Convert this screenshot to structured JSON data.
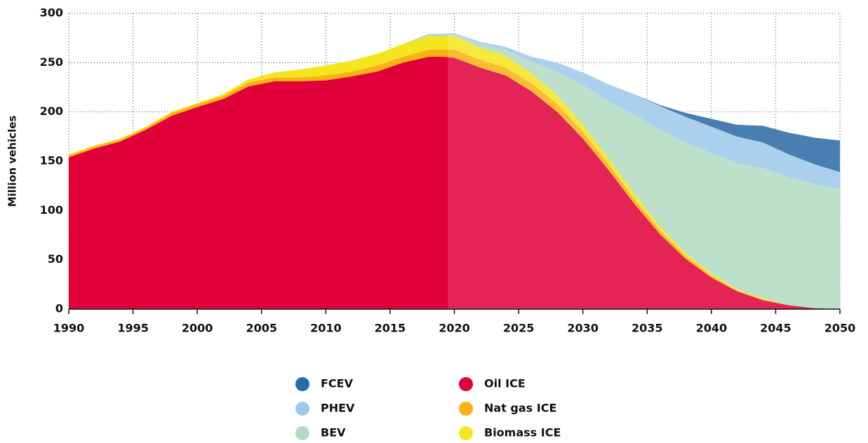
{
  "chart_data": {
    "type": "stacked_area",
    "ylabel": "Million vehicles",
    "x": [
      1990,
      1992,
      1994,
      1996,
      1998,
      2000,
      2002,
      2004,
      2006,
      2008,
      2010,
      2012,
      2014,
      2016,
      2018,
      2019,
      2020,
      2022,
      2024,
      2026,
      2028,
      2030,
      2032,
      2034,
      2036,
      2038,
      2040,
      2042,
      2044,
      2046,
      2048,
      2050
    ],
    "series": [
      {
        "name": "Oil ICE",
        "color": "#e0003a",
        "values": [
          154,
          163,
          170,
          182,
          196,
          205,
          213,
          226,
          231,
          231,
          232,
          236,
          241,
          250,
          256,
          256,
          255,
          245,
          237,
          221,
          200,
          173,
          141,
          107,
          76,
          51,
          32,
          18,
          9,
          4,
          1,
          0
        ]
      },
      {
        "name": "Nat gas ICE",
        "color": "#f9b214",
        "values": [
          2,
          2,
          2,
          2,
          3,
          3,
          3,
          4,
          4,
          4,
          5,
          5,
          6,
          6,
          7,
          7,
          8,
          8,
          8,
          8,
          8,
          7,
          6,
          5,
          4,
          3,
          2,
          1,
          1,
          0,
          0,
          0
        ]
      },
      {
        "name": "Biomass ICE",
        "color": "#f5e51e",
        "values": [
          1,
          1,
          1,
          1,
          1,
          1,
          2,
          3,
          5,
          8,
          10,
          11,
          12,
          13,
          14,
          14,
          14,
          12,
          12,
          10,
          9,
          7,
          6,
          5,
          4,
          3,
          2,
          1,
          1,
          0,
          0,
          0
        ]
      },
      {
        "name": "BEV",
        "color": "#b2dbc2",
        "values": [
          0,
          0,
          0,
          0,
          0,
          0,
          0,
          0,
          0,
          0,
          0,
          0,
          0,
          0,
          1,
          1,
          2,
          4,
          6,
          12,
          24,
          40,
          58,
          80,
          98,
          112,
          122,
          128,
          132,
          130,
          126,
          122
        ]
      },
      {
        "name": "PHEV",
        "color": "#9ec9ea",
        "values": [
          0,
          0,
          0,
          0,
          0,
          0,
          0,
          0,
          0,
          0,
          0,
          0,
          0,
          0,
          1,
          1,
          1,
          2,
          3,
          5,
          9,
          13,
          17,
          21,
          24,
          26,
          27,
          27,
          26,
          23,
          20,
          17
        ]
      },
      {
        "name": "FCEV",
        "color": "#2a6aa3",
        "values": [
          0,
          0,
          0,
          0,
          0,
          0,
          0,
          0,
          0,
          0,
          0,
          0,
          0,
          0,
          0,
          0,
          0,
          0,
          0,
          0,
          0,
          0,
          0,
          0,
          1,
          4,
          8,
          12,
          17,
          22,
          27,
          32
        ]
      }
    ],
    "projection_from": 2019.5,
    "xlim": [
      1990,
      2050
    ],
    "xticks": [
      1990,
      1995,
      2000,
      2005,
      2010,
      2015,
      2020,
      2025,
      2030,
      2035,
      2040,
      2045,
      2050
    ],
    "ylim": [
      0,
      300
    ],
    "yticks": [
      0,
      50,
      100,
      150,
      200,
      250,
      300
    ],
    "grid": true
  }
}
